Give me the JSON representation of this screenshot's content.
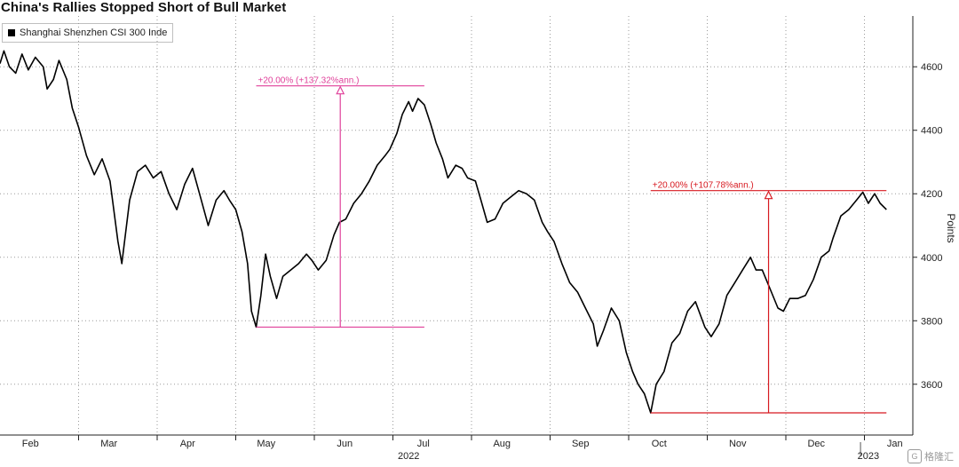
{
  "chart_data": {
    "type": "line",
    "title": "China's Rallies Stopped Short of Bull Market",
    "ylabel": "Points",
    "legend": {
      "placement": "top-left",
      "entries": [
        "Shanghai Shenzhen CSI 300 Inde"
      ]
    },
    "ylim": [
      3440,
      4760
    ],
    "y_ticks": [
      3600,
      3800,
      4000,
      4200,
      4400,
      4600
    ],
    "x_ticks": [
      "Feb",
      "Mar",
      "Apr",
      "May",
      "Jun",
      "Jul",
      "Aug",
      "Sep",
      "Oct",
      "Nov",
      "Dec",
      "Jan"
    ],
    "year_labels": [
      "2022",
      "2023"
    ],
    "grid": "dotted",
    "series": [
      {
        "name": "Shanghai Shenzhen CSI 300 Inde",
        "color": "#000000",
        "points": [
          [
            0,
            4610
          ],
          [
            0.05,
            4650
          ],
          [
            0.12,
            4600
          ],
          [
            0.2,
            4580
          ],
          [
            0.28,
            4640
          ],
          [
            0.36,
            4590
          ],
          [
            0.45,
            4630
          ],
          [
            0.55,
            4600
          ],
          [
            0.6,
            4530
          ],
          [
            0.68,
            4560
          ],
          [
            0.75,
            4620
          ],
          [
            0.85,
            4560
          ],
          [
            0.92,
            4470
          ],
          [
            1.0,
            4410
          ],
          [
            1.1,
            4320
          ],
          [
            1.2,
            4260
          ],
          [
            1.3,
            4310
          ],
          [
            1.4,
            4240
          ],
          [
            1.5,
            4050
          ],
          [
            1.55,
            3980
          ],
          [
            1.65,
            4180
          ],
          [
            1.75,
            4270
          ],
          [
            1.85,
            4290
          ],
          [
            1.95,
            4250
          ],
          [
            2.05,
            4270
          ],
          [
            2.15,
            4200
          ],
          [
            2.25,
            4150
          ],
          [
            2.35,
            4230
          ],
          [
            2.45,
            4280
          ],
          [
            2.55,
            4190
          ],
          [
            2.65,
            4100
          ],
          [
            2.75,
            4180
          ],
          [
            2.85,
            4210
          ],
          [
            2.92,
            4180
          ],
          [
            3.0,
            4150
          ],
          [
            3.08,
            4080
          ],
          [
            3.15,
            3980
          ],
          [
            3.2,
            3830
          ],
          [
            3.26,
            3780
          ],
          [
            3.32,
            3880
          ],
          [
            3.38,
            4010
          ],
          [
            3.44,
            3940
          ],
          [
            3.52,
            3870
          ],
          [
            3.6,
            3940
          ],
          [
            3.7,
            3960
          ],
          [
            3.8,
            3980
          ],
          [
            3.9,
            4010
          ],
          [
            3.97,
            3990
          ],
          [
            4.05,
            3960
          ],
          [
            4.15,
            3990
          ],
          [
            4.25,
            4070
          ],
          [
            4.32,
            4110
          ],
          [
            4.4,
            4120
          ],
          [
            4.5,
            4170
          ],
          [
            4.6,
            4200
          ],
          [
            4.7,
            4240
          ],
          [
            4.8,
            4290
          ],
          [
            4.9,
            4320
          ],
          [
            4.96,
            4340
          ],
          [
            5.05,
            4390
          ],
          [
            5.12,
            4450
          ],
          [
            5.2,
            4490
          ],
          [
            5.25,
            4460
          ],
          [
            5.32,
            4500
          ],
          [
            5.4,
            4480
          ],
          [
            5.48,
            4420
          ],
          [
            5.55,
            4360
          ],
          [
            5.63,
            4310
          ],
          [
            5.7,
            4250
          ],
          [
            5.8,
            4290
          ],
          [
            5.88,
            4280
          ],
          [
            5.95,
            4250
          ],
          [
            6.05,
            4240
          ],
          [
            6.12,
            4180
          ],
          [
            6.2,
            4110
          ],
          [
            6.3,
            4120
          ],
          [
            6.4,
            4170
          ],
          [
            6.5,
            4190
          ],
          [
            6.6,
            4210
          ],
          [
            6.7,
            4200
          ],
          [
            6.8,
            4180
          ],
          [
            6.9,
            4110
          ],
          [
            6.97,
            4080
          ],
          [
            7.05,
            4050
          ],
          [
            7.15,
            3980
          ],
          [
            7.25,
            3920
          ],
          [
            7.35,
            3890
          ],
          [
            7.45,
            3840
          ],
          [
            7.55,
            3790
          ],
          [
            7.6,
            3720
          ],
          [
            7.68,
            3770
          ],
          [
            7.78,
            3840
          ],
          [
            7.88,
            3800
          ],
          [
            7.97,
            3700
          ],
          [
            8.05,
            3640
          ],
          [
            8.12,
            3600
          ],
          [
            8.2,
            3570
          ],
          [
            8.28,
            3510
          ],
          [
            8.35,
            3600
          ],
          [
            8.45,
            3640
          ],
          [
            8.55,
            3730
          ],
          [
            8.65,
            3760
          ],
          [
            8.75,
            3830
          ],
          [
            8.85,
            3860
          ],
          [
            8.97,
            3780
          ],
          [
            9.05,
            3750
          ],
          [
            9.15,
            3790
          ],
          [
            9.25,
            3880
          ],
          [
            9.35,
            3920
          ],
          [
            9.45,
            3960
          ],
          [
            9.55,
            4000
          ],
          [
            9.62,
            3960
          ],
          [
            9.7,
            3960
          ],
          [
            9.8,
            3900
          ],
          [
            9.9,
            3840
          ],
          [
            9.97,
            3830
          ],
          [
            10.05,
            3870
          ],
          [
            10.15,
            3870
          ],
          [
            10.25,
            3880
          ],
          [
            10.35,
            3930
          ],
          [
            10.45,
            4000
          ],
          [
            10.55,
            4020
          ],
          [
            10.6,
            4060
          ],
          [
            10.7,
            4130
          ],
          [
            10.8,
            4150
          ],
          [
            10.9,
            4180
          ],
          [
            10.98,
            4205
          ],
          [
            11.05,
            4170
          ],
          [
            11.13,
            4200
          ],
          [
            11.2,
            4170
          ],
          [
            11.28,
            4150
          ]
        ]
      }
    ],
    "annotations": [
      {
        "label": "+20.00% (+137.32%ann.)",
        "color": "#e0409a",
        "from": [
          3.26,
          3780
        ],
        "to": [
          5.4,
          4540
        ],
        "low_value": 3780,
        "high_value": 4540
      },
      {
        "label": "+20.00% (+107.78%ann.)",
        "color": "#d71920",
        "from": [
          8.28,
          3510
        ],
        "to": [
          11.28,
          4210
        ],
        "low_value": 3510,
        "high_value": 4210
      }
    ]
  },
  "watermark": {
    "text": "格隆汇",
    "logo": "G"
  }
}
